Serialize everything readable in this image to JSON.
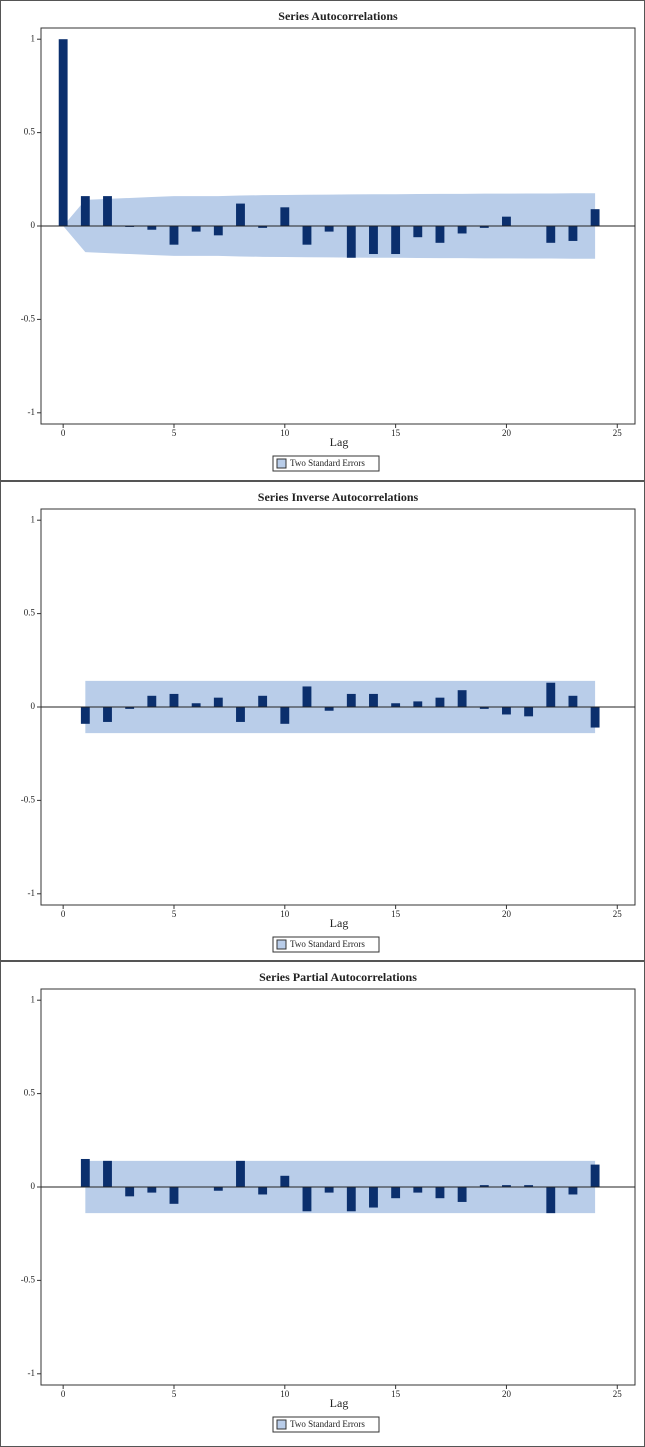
{
  "chart_data": [
    {
      "type": "bar",
      "title": "Series Autocorrelations",
      "xlabel": "Lag",
      "x": [
        0,
        1,
        2,
        3,
        4,
        5,
        6,
        7,
        8,
        9,
        10,
        11,
        12,
        13,
        14,
        15,
        16,
        17,
        18,
        19,
        20,
        21,
        22,
        23,
        24
      ],
      "values": [
        1,
        0.16,
        0.16,
        -0.005,
        -0.02,
        -0.1,
        -0.03,
        -0.05,
        0.12,
        -0.01,
        0.1,
        -0.1,
        -0.03,
        -0.17,
        -0.15,
        -0.15,
        -0.06,
        -0.09,
        -0.04,
        -0.01,
        0.05,
        0,
        -0.09,
        -0.08,
        0.09
      ],
      "color": "#0b2f6d",
      "band": {
        "name": "Two Standard Errors",
        "color": "#b9cde9",
        "values": [
          0,
          0.14,
          0.145,
          0.15,
          0.155,
          0.16,
          0.16,
          0.16,
          0.163,
          0.165,
          0.166,
          0.167,
          0.168,
          0.169,
          0.17,
          0.17,
          0.171,
          0.172,
          0.172,
          0.173,
          0.173,
          0.174,
          0.174,
          0.175,
          0.175
        ]
      },
      "xlim": [
        -1,
        25.8
      ],
      "ylim": [
        -1.06,
        1.06
      ],
      "xticks": [
        0,
        5,
        10,
        15,
        20,
        25
      ],
      "yticks": [
        -1,
        -0.5,
        0,
        0.5,
        1
      ]
    },
    {
      "type": "bar",
      "title": "Series Inverse Autocorrelations",
      "xlabel": "Lag",
      "x": [
        1,
        2,
        3,
        4,
        5,
        6,
        7,
        8,
        9,
        10,
        11,
        12,
        13,
        14,
        15,
        16,
        17,
        18,
        19,
        20,
        21,
        22,
        23,
        24
      ],
      "values": [
        -0.09,
        -0.08,
        -0.01,
        0.06,
        0.07,
        0.02,
        0.05,
        -0.08,
        0.06,
        -0.09,
        0.11,
        -0.02,
        0.07,
        0.07,
        0.02,
        0.03,
        0.05,
        0.09,
        -0.01,
        -0.04,
        -0.05,
        0.13,
        0.06,
        -0.11
      ],
      "color": "#0b2f6d",
      "band": {
        "name": "Two Standard Errors",
        "color": "#b9cde9",
        "values": [
          0.14,
          0.14,
          0.14,
          0.14,
          0.14,
          0.14,
          0.14,
          0.14,
          0.14,
          0.14,
          0.14,
          0.14,
          0.14,
          0.14,
          0.14,
          0.14,
          0.14,
          0.14,
          0.14,
          0.14,
          0.14,
          0.14,
          0.14,
          0.14
        ]
      },
      "xlim": [
        -1,
        25.8
      ],
      "ylim": [
        -1.06,
        1.06
      ],
      "xticks": [
        0,
        5,
        10,
        15,
        20,
        25
      ],
      "yticks": [
        -1,
        -0.5,
        0,
        0.5,
        1
      ]
    },
    {
      "type": "bar",
      "title": "Series Partial Autocorrelations",
      "xlabel": "Lag",
      "x": [
        1,
        2,
        3,
        4,
        5,
        6,
        7,
        8,
        9,
        10,
        11,
        12,
        13,
        14,
        15,
        16,
        17,
        18,
        19,
        20,
        21,
        22,
        23,
        24
      ],
      "values": [
        0.15,
        0.14,
        -0.05,
        -0.03,
        -0.09,
        0,
        -0.02,
        0.14,
        -0.04,
        0.06,
        -0.13,
        -0.03,
        -0.13,
        -0.11,
        -0.06,
        -0.03,
        -0.06,
        -0.08,
        0.01,
        0.01,
        0.01,
        -0.14,
        -0.04,
        0.12
      ],
      "color": "#0b2f6d",
      "band": {
        "name": "Two Standard Errors",
        "color": "#b9cde9",
        "values": [
          0.14,
          0.14,
          0.14,
          0.14,
          0.14,
          0.14,
          0.14,
          0.14,
          0.14,
          0.14,
          0.14,
          0.14,
          0.14,
          0.14,
          0.14,
          0.14,
          0.14,
          0.14,
          0.14,
          0.14,
          0.14,
          0.14,
          0.14,
          0.14
        ]
      },
      "xlim": [
        -1,
        25.8
      ],
      "ylim": [
        -1.06,
        1.06
      ],
      "xticks": [
        0,
        5,
        10,
        15,
        20,
        25
      ],
      "yticks": [
        -1,
        -0.5,
        0,
        0.5,
        1
      ]
    }
  ]
}
